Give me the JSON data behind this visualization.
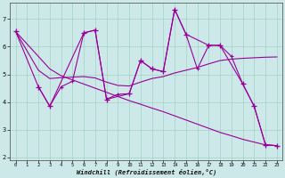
{
  "xlabel": "Windchill (Refroidissement éolien,°C)",
  "background_color": "#cce8e8",
  "line_color": "#990099",
  "xlim": [
    -0.5,
    23.5
  ],
  "ylim": [
    1.9,
    7.6
  ],
  "yticks": [
    2,
    3,
    4,
    5,
    6,
    7
  ],
  "xticks": [
    0,
    1,
    2,
    3,
    4,
    5,
    6,
    7,
    8,
    9,
    10,
    11,
    12,
    13,
    14,
    15,
    16,
    17,
    18,
    19,
    20,
    21,
    22,
    23
  ],
  "curve1_x": [
    0,
    1,
    2,
    3,
    4,
    5,
    6,
    7,
    8,
    9,
    10,
    11,
    12,
    13,
    14,
    15,
    16,
    17,
    18,
    19,
    20,
    21,
    22,
    23
  ],
  "curve1_y": [
    6.55,
    6.1,
    5.65,
    5.2,
    4.95,
    4.8,
    4.65,
    4.5,
    4.35,
    4.2,
    4.05,
    3.92,
    3.78,
    3.65,
    3.5,
    3.35,
    3.2,
    3.05,
    2.9,
    2.78,
    2.65,
    2.55,
    2.45,
    2.42
  ],
  "curve2_x": [
    0,
    2,
    3,
    6,
    7,
    8,
    10,
    11,
    12,
    13,
    14,
    15,
    17,
    18,
    20,
    21,
    22,
    23
  ],
  "curve2_y": [
    6.55,
    4.55,
    3.85,
    6.5,
    6.6,
    4.1,
    4.3,
    5.5,
    5.2,
    5.1,
    7.35,
    6.45,
    6.05,
    6.05,
    4.65,
    3.85,
    2.45,
    2.42
  ],
  "curve3_x": [
    0,
    1,
    2,
    3,
    4,
    5,
    6,
    7,
    8,
    9,
    10,
    11,
    12,
    13,
    14,
    15,
    16,
    17,
    18,
    19,
    20,
    21,
    22,
    23
  ],
  "curve3_y": [
    6.55,
    5.85,
    5.15,
    4.85,
    4.88,
    4.9,
    4.92,
    4.87,
    4.72,
    4.6,
    4.58,
    4.72,
    4.85,
    4.92,
    5.05,
    5.15,
    5.25,
    5.38,
    5.5,
    5.55,
    5.58,
    5.6,
    5.62,
    5.63
  ],
  "curve4_x": [
    2,
    3,
    4,
    5,
    6,
    7,
    8,
    9,
    10,
    11,
    12,
    13,
    14,
    15,
    16,
    17,
    18,
    19,
    20,
    21,
    22,
    23
  ],
  "curve4_y": [
    4.55,
    3.85,
    4.55,
    4.75,
    6.5,
    6.6,
    4.1,
    4.28,
    4.3,
    5.5,
    5.2,
    5.1,
    7.35,
    6.45,
    5.2,
    6.05,
    6.05,
    5.65,
    4.65,
    3.85,
    2.45,
    2.42
  ]
}
